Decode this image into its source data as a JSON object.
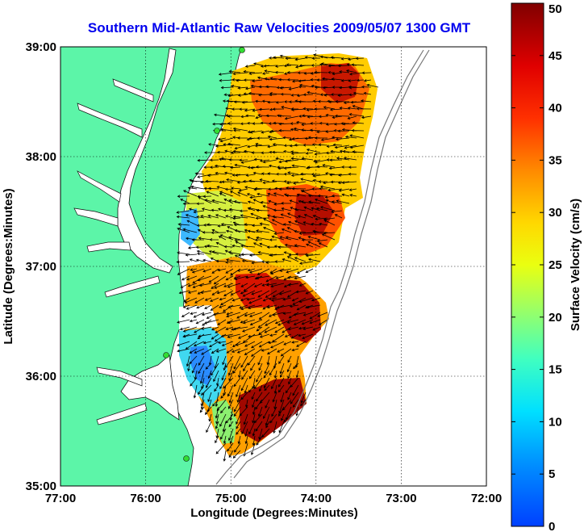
{
  "title": "Southern Mid-Atlantic Raw Velocities 2009/05/07 1300 GMT",
  "x_axis": {
    "label": "Longitude (Degrees:Minutes)",
    "ticks": [
      "77:00",
      "76:00",
      "75:00",
      "74:00",
      "73:00",
      "72:00"
    ]
  },
  "y_axis": {
    "label": "Latitude (Degrees:Minutes)",
    "ticks": [
      "39:00",
      "38:00",
      "37:00",
      "36:00",
      "35:00"
    ]
  },
  "colorbar": {
    "label": "Surface Velocity (cm/s)",
    "ticks": [
      "0",
      "5",
      "10",
      "15",
      "20",
      "25",
      "30",
      "35",
      "40",
      "45",
      "50"
    ],
    "min": 0,
    "max": 50
  },
  "colors": {
    "land": "#5cf5a8",
    "title": "#0000ee",
    "station": "#33dd33"
  },
  "chart_data": {
    "type": "map",
    "xlim": [
      -77,
      -72
    ],
    "ylim": [
      35,
      39
    ],
    "grid": true,
    "colorbar_placement": "right"
  }
}
